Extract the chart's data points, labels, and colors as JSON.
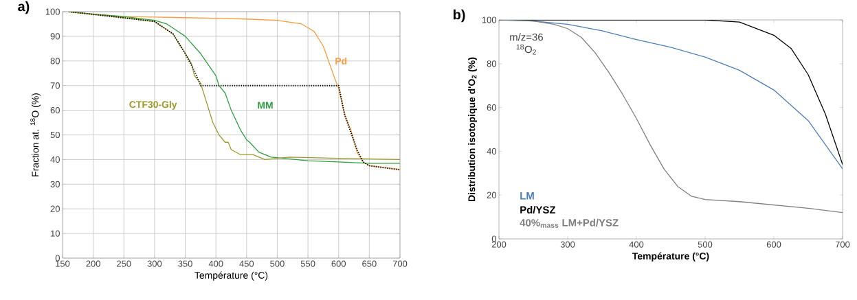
{
  "chart_data": [
    {
      "type": "line",
      "title": "a)",
      "xlabel": "Température (°C)",
      "ylabel": "Fraction at. $^{18}$O (%)",
      "xlim": [
        150,
        700
      ],
      "ylim": [
        0,
        100
      ],
      "xticks": [
        150,
        200,
        250,
        300,
        350,
        400,
        450,
        500,
        550,
        600,
        650,
        700
      ],
      "yticks": [
        0,
        10,
        20,
        30,
        40,
        50,
        60,
        70,
        80,
        90,
        100
      ],
      "grid": true,
      "series": [
        {
          "name": "Pd",
          "color": "#f79a3e",
          "x": [
            160,
            200,
            250,
            300,
            400,
            450,
            500,
            540,
            560,
            575,
            585,
            595,
            600,
            610,
            620,
            630,
            640,
            650,
            700
          ],
          "values": [
            100,
            99,
            98,
            97.8,
            97.3,
            97,
            96.5,
            95,
            92,
            86,
            79,
            72,
            69,
            58,
            52,
            43,
            39,
            37.5,
            36
          ]
        },
        {
          "name": "MM",
          "color": "#2e9e3e",
          "x": [
            160,
            200,
            250,
            300,
            320,
            350,
            375,
            400,
            405,
            415,
            425,
            440,
            450,
            455,
            470,
            490,
            550,
            650,
            700
          ],
          "values": [
            100,
            99,
            98,
            96.5,
            95,
            90,
            83,
            74,
            70,
            67,
            60,
            52,
            48,
            47,
            43,
            41,
            39.5,
            38.5,
            38.5
          ]
        },
        {
          "name": "CTF30-Gly",
          "color": "#9c9a2a",
          "x": [
            160,
            250,
            300,
            330,
            350,
            360,
            365,
            375,
            385,
            395,
            405,
            415,
            420,
            425,
            440,
            460,
            480,
            500,
            520,
            600,
            700
          ],
          "values": [
            100,
            97.5,
            96,
            91,
            83,
            79,
            74,
            71,
            63,
            55,
            50,
            47,
            47,
            44,
            42,
            42,
            40,
            40.5,
            41,
            40.5,
            40
          ]
        },
        {
          "color": "#000000",
          "line_style": "dotted",
          "x": [
            160,
            250,
            300,
            330,
            350,
            365,
            375,
            600,
            610,
            620,
            630,
            640,
            650,
            700
          ],
          "values": [
            100,
            97.5,
            96,
            91,
            83,
            76,
            70,
            70,
            58,
            51,
            44,
            39,
            37.5,
            35.8
          ]
        }
      ]
    },
    {
      "type": "line",
      "title": "b)",
      "xlabel": "Température (°C)",
      "ylabel": "Distribution  isotopique d'O$_{2}$ (%)",
      "xlim": [
        200,
        700
      ],
      "ylim": [
        0,
        100
      ],
      "xticks": [
        200,
        300,
        400,
        500,
        600,
        700
      ],
      "yticks": [
        0,
        20,
        40,
        60,
        80,
        100
      ],
      "legend": "bottom left",
      "annotations": [
        "m/z=36",
        "$^{18}$O$_{2}$"
      ],
      "series": [
        {
          "name": "LM",
          "color": "#4a7ebb",
          "x": [
            200,
            250,
            300,
            350,
            400,
            450,
            500,
            550,
            600,
            650,
            700
          ],
          "values": [
            100,
            99.5,
            98,
            95,
            91,
            87.5,
            83,
            77,
            68,
            54,
            32
          ]
        },
        {
          "name": "Pd/YSZ",
          "color": "#000000",
          "x": [
            200,
            500,
            550,
            600,
            625,
            650,
            675,
            700
          ],
          "values": [
            100,
            100,
            99,
            93,
            87,
            75,
            57,
            34
          ]
        },
        {
          "name": "40%$_{mass}$ LM+Pd/YSZ",
          "color": "#7f7f7f",
          "x": [
            200,
            250,
            280,
            300,
            320,
            340,
            360,
            380,
            400,
            420,
            440,
            460,
            480,
            500,
            550,
            600,
            650,
            700
          ],
          "values": [
            100,
            99.5,
            98,
            96,
            92,
            85,
            76,
            66,
            55,
            43,
            32,
            24,
            19.5,
            18,
            17,
            15.5,
            14,
            12
          ]
        }
      ]
    }
  ]
}
